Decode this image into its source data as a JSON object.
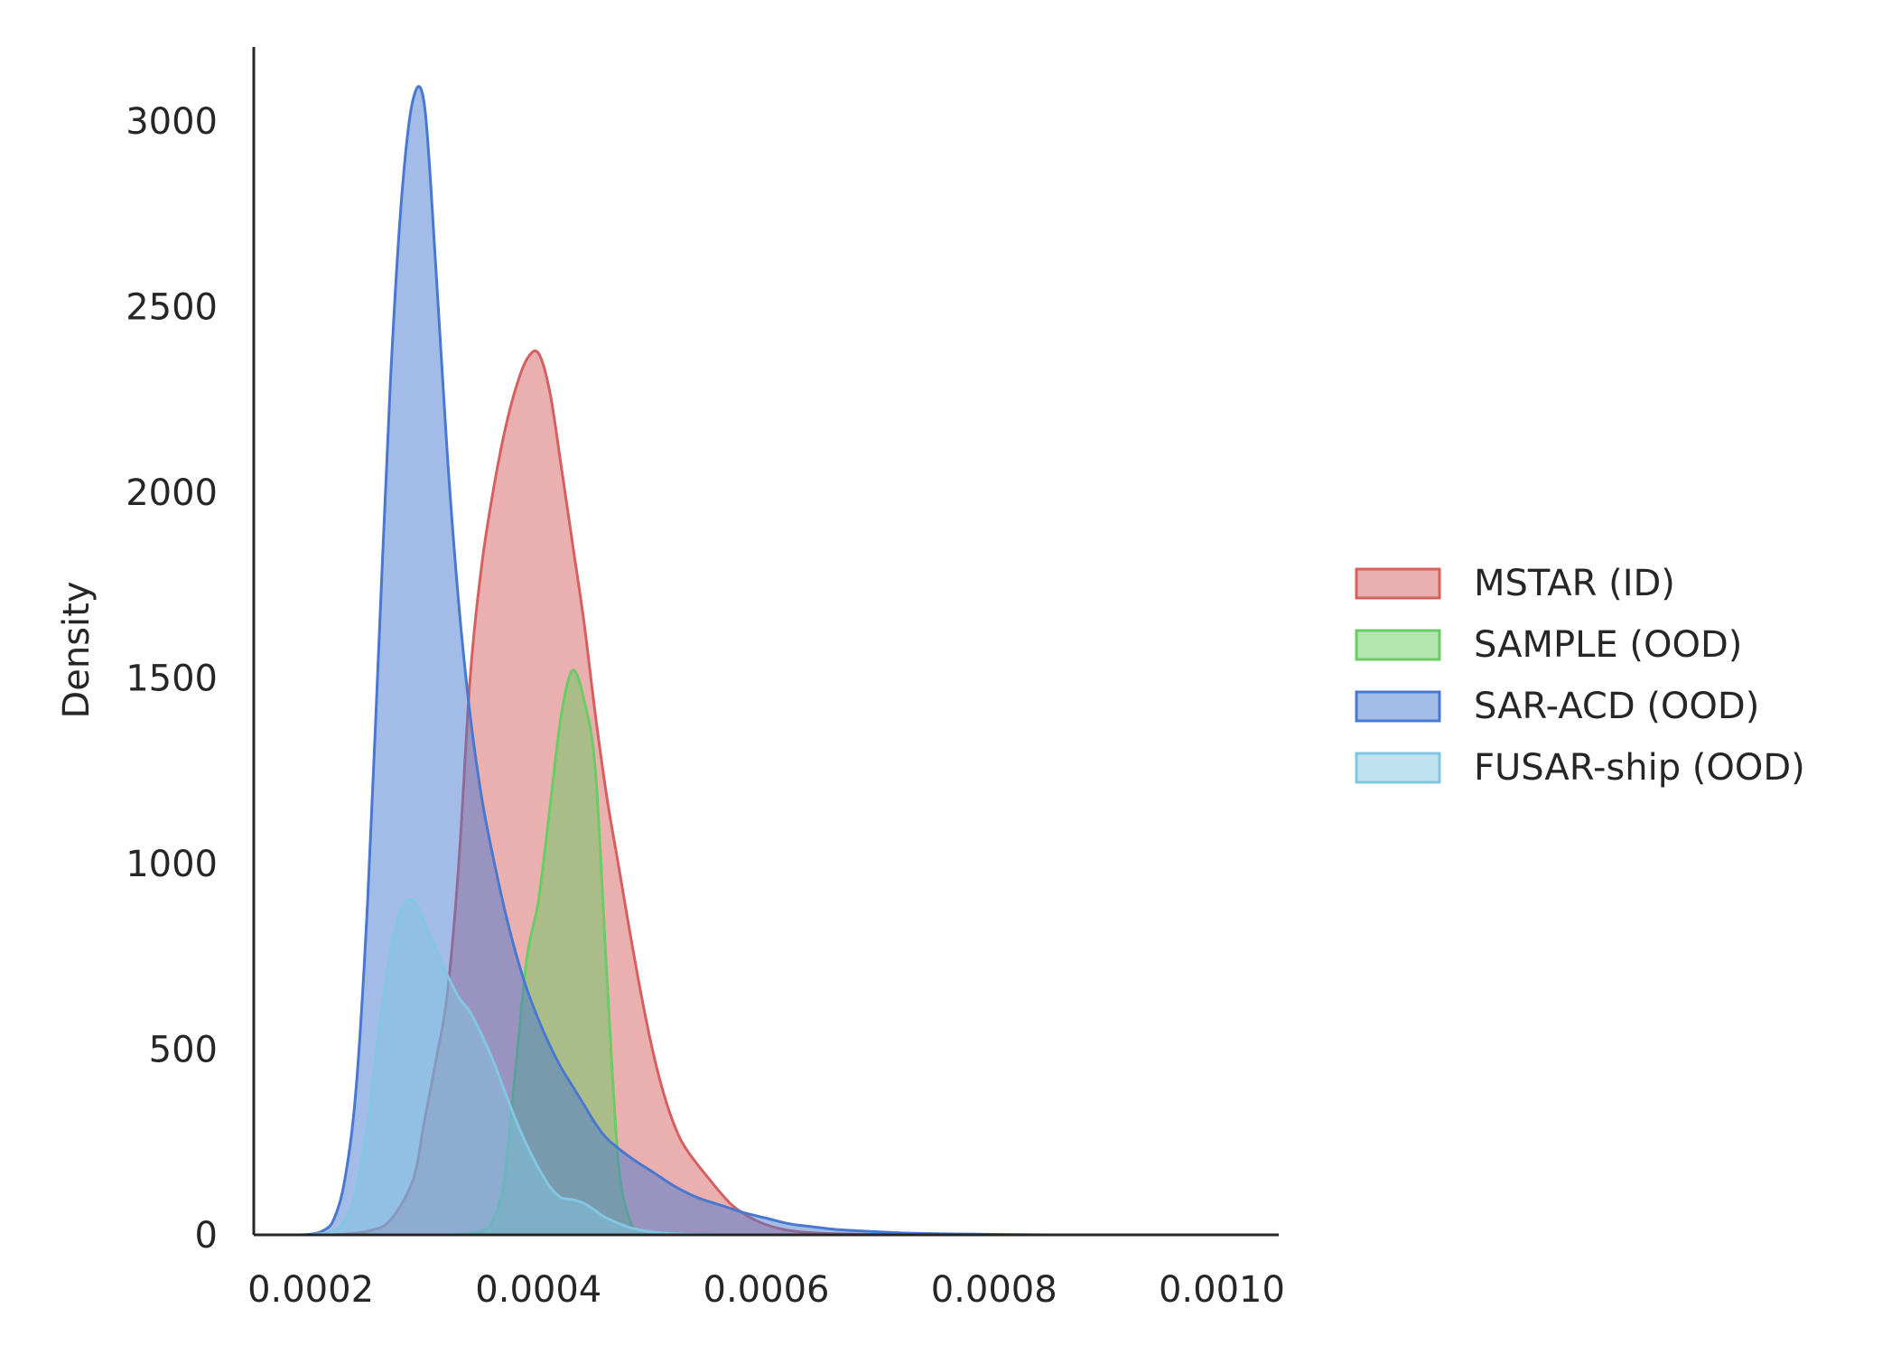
{
  "chart_data": {
    "type": "area",
    "subtype": "kde-density",
    "xlabel": "",
    "ylabel": "Density",
    "xlim": [
      0.00015,
      0.00105
    ],
    "ylim": [
      0,
      3200
    ],
    "x_ticks": [
      0.0002,
      0.0004,
      0.0006,
      0.0008,
      0.001
    ],
    "x_tick_labels": [
      "0.0002",
      "0.0004",
      "0.0006",
      "0.0008",
      "0.0010"
    ],
    "y_ticks": [
      0,
      500,
      1000,
      1500,
      2000,
      2500,
      3000
    ],
    "y_tick_labels": [
      "0",
      "500",
      "1000",
      "1500",
      "2000",
      "2500",
      "3000"
    ],
    "grid": false,
    "legend_position": "right-outside",
    "series": [
      {
        "name": "MSTAR (ID)",
        "color": "#d65f5f",
        "x": [
          0.00022,
          0.00025,
          0.00027,
          0.00029,
          0.0003,
          0.00031,
          0.00032,
          0.00033,
          0.00034,
          0.00035,
          0.00036,
          0.00037,
          0.00038,
          0.00039,
          0.0004,
          0.00041,
          0.00042,
          0.00043,
          0.00044,
          0.00045,
          0.00046,
          0.00047,
          0.00048,
          0.00049,
          0.0005,
          0.00051,
          0.00052,
          0.00053,
          0.00055,
          0.00057,
          0.00059,
          0.00061,
          0.00063,
          0.00066,
          0.0007,
          0.00075
        ],
        "y": [
          0,
          10,
          40,
          150,
          310,
          470,
          650,
          1000,
          1500,
          1800,
          2000,
          2160,
          2280,
          2360,
          2375,
          2270,
          2070,
          1860,
          1650,
          1400,
          1180,
          1000,
          820,
          650,
          500,
          380,
          290,
          230,
          150,
          80,
          40,
          18,
          8,
          3,
          1,
          0
        ]
      },
      {
        "name": "SAMPLE (OOD)",
        "color": "#6acc64",
        "x": [
          0.00033,
          0.00035,
          0.00036,
          0.00037,
          0.00038,
          0.00039,
          0.0004,
          0.00041,
          0.00042,
          0.00043,
          0.00044,
          0.00045,
          0.00046,
          0.00047,
          0.00048,
          0.00049,
          0.0005
        ],
        "y": [
          0,
          10,
          40,
          150,
          450,
          750,
          900,
          1150,
          1400,
          1520,
          1440,
          1250,
          700,
          200,
          40,
          5,
          0
        ]
      },
      {
        "name": "SAR-ACD (OOD)",
        "color": "#4878d0",
        "x": [
          0.00019,
          0.0002,
          0.00021,
          0.00022,
          0.00023,
          0.00024,
          0.00025,
          0.00026,
          0.00027,
          0.00028,
          0.00029,
          0.0003,
          0.00031,
          0.00032,
          0.00033,
          0.00034,
          0.00035,
          0.00036,
          0.00037,
          0.00038,
          0.00039,
          0.0004,
          0.00041,
          0.00042,
          0.00043,
          0.00044,
          0.00045,
          0.00046,
          0.00048,
          0.0005,
          0.00052,
          0.00054,
          0.00056,
          0.00058,
          0.0006,
          0.00062,
          0.00064,
          0.00066,
          0.00068,
          0.0007,
          0.00072,
          0.00075,
          0.00078,
          0.00081,
          0.00085,
          0.0009,
          0.00095,
          0.001
        ],
        "y": [
          0,
          2,
          10,
          40,
          150,
          400,
          900,
          1600,
          2300,
          2800,
          3060,
          3040,
          2600,
          2100,
          1700,
          1400,
          1180,
          1020,
          880,
          760,
          660,
          580,
          510,
          450,
          400,
          350,
          300,
          260,
          210,
          170,
          130,
          100,
          80,
          60,
          45,
          30,
          22,
          15,
          11,
          8,
          5,
          3,
          2,
          1,
          0,
          0,
          0,
          0
        ]
      },
      {
        "name": "FUSAR-ship (OOD)",
        "color": "#82c6e2",
        "x": [
          0.0002,
          0.00022,
          0.00023,
          0.00024,
          0.00025,
          0.00026,
          0.00027,
          0.00028,
          0.00029,
          0.0003,
          0.00031,
          0.00032,
          0.00033,
          0.00034,
          0.00035,
          0.00036,
          0.00037,
          0.00038,
          0.00039,
          0.0004,
          0.00041,
          0.00042,
          0.00043,
          0.00044,
          0.00045,
          0.00046,
          0.00048,
          0.0005,
          0.00052,
          0.00054,
          0.00056,
          0.00058,
          0.0006
        ],
        "y": [
          0,
          10,
          40,
          120,
          300,
          550,
          760,
          880,
          900,
          840,
          770,
          700,
          640,
          600,
          540,
          470,
          390,
          310,
          240,
          180,
          130,
          100,
          95,
          85,
          65,
          45,
          20,
          8,
          3,
          1,
          0,
          0,
          0
        ]
      }
    ]
  }
}
